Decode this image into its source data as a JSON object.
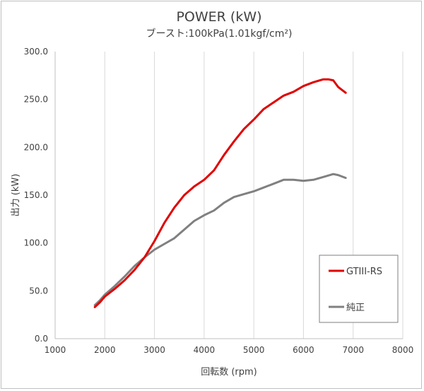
{
  "chart_data": {
    "type": "line",
    "title": "POWER (kW)",
    "subtitle": "ブースト:100kPa(1.01kgf/cm²)",
    "xlabel": "回転数 (rpm)",
    "ylabel": "出力 (kW)",
    "xlim": [
      1000,
      8000
    ],
    "ylim": [
      0,
      300
    ],
    "x_ticks": [
      1000,
      2000,
      3000,
      4000,
      5000,
      6000,
      7000,
      8000
    ],
    "x_tick_labels": [
      "1000",
      "2000",
      "3000",
      "4000",
      "5000",
      "6000",
      "7000",
      "8000"
    ],
    "y_ticks": [
      0,
      50,
      100,
      150,
      200,
      250,
      300
    ],
    "y_tick_labels": [
      "0.0",
      "50.0",
      "100.0",
      "150.0",
      "200.0",
      "250.0",
      "300.0"
    ],
    "grid": "vertical",
    "legend_position": "bottom-right",
    "series": [
      {
        "name": "GTIII-RS",
        "color": "#e00000",
        "x": [
          1800,
          1900,
          2000,
          2200,
          2400,
          2600,
          2800,
          3000,
          3200,
          3400,
          3600,
          3800,
          4000,
          4200,
          4400,
          4600,
          4800,
          5000,
          5200,
          5400,
          5600,
          5800,
          6000,
          6200,
          6400,
          6500,
          6600,
          6700,
          6750,
          6850
        ],
        "y": [
          33,
          38,
          44,
          52,
          61,
          72,
          85,
          102,
          121,
          137,
          150,
          159,
          166,
          176,
          192,
          206,
          219,
          229,
          240,
          247,
          254,
          258,
          264,
          268,
          271,
          271,
          270,
          263,
          261,
          257
        ]
      },
      {
        "name": "純正",
        "color": "#808080",
        "x": [
          1800,
          1900,
          2000,
          2200,
          2400,
          2600,
          2800,
          3000,
          3200,
          3400,
          3600,
          3800,
          4000,
          4200,
          4400,
          4600,
          4800,
          5000,
          5200,
          5400,
          5600,
          5800,
          6000,
          6200,
          6400,
          6600,
          6700,
          6850
        ],
        "y": [
          35,
          40,
          46,
          55,
          65,
          76,
          85,
          93,
          99,
          105,
          114,
          123,
          129,
          134,
          142,
          148,
          151,
          154,
          158,
          162,
          166,
          166,
          165,
          166,
          169,
          172,
          171,
          168
        ]
      }
    ]
  }
}
